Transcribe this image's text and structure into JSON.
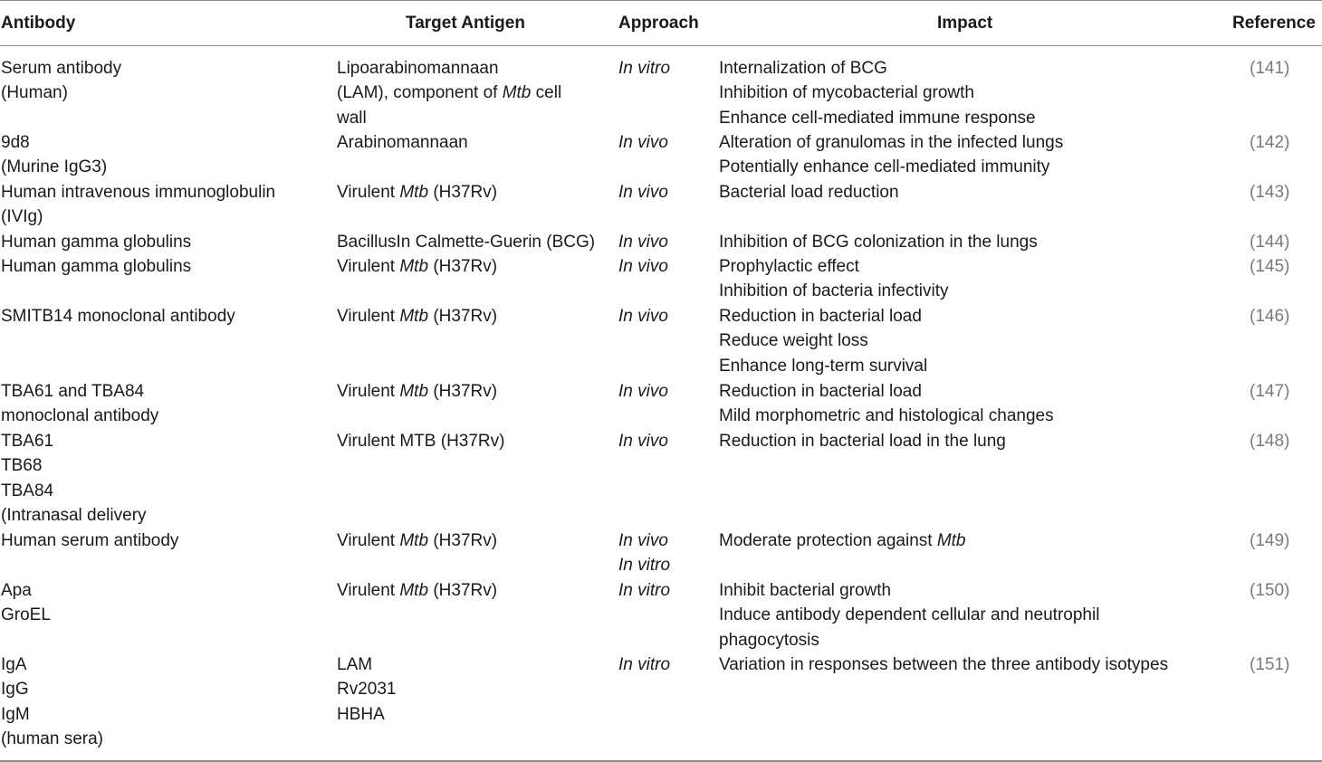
{
  "headers": {
    "antibody": "Antibody",
    "target": "Target Antigen",
    "approach": "Approach",
    "impact": "Impact",
    "reference": "Reference"
  },
  "rows": [
    {
      "antibody": [
        [
          "Serum antibody"
        ],
        [
          "(Human)"
        ]
      ],
      "target": [
        [
          "Lipoarabinomannaan"
        ],
        [
          "(LAM), component of ",
          "Mtb",
          " cell"
        ],
        [
          "wall"
        ]
      ],
      "approach": [
        "In vitro"
      ],
      "impact": [
        "Internalization of BCG",
        "Inhibition of mycobacterial growth",
        "Enhance cell-mediated immune response"
      ],
      "ref": "(141)"
    },
    {
      "antibody": [
        [
          "9d8"
        ],
        [
          "(Murine IgG3)"
        ]
      ],
      "target": [
        [
          "Arabinomannaan"
        ]
      ],
      "approach": [
        "In vivo"
      ],
      "impact": [
        "Alteration of granulomas in the infected lungs",
        "Potentially enhance cell-mediated immunity"
      ],
      "ref": "(142)"
    },
    {
      "antibody": [
        [
          "Human intravenous immunoglobulin"
        ],
        [
          "(IVIg)"
        ]
      ],
      "target": [
        [
          "Virulent ",
          "Mtb",
          " (H37Rv)"
        ]
      ],
      "approach": [
        "In vivo"
      ],
      "impact": [
        "Bacterial load reduction"
      ],
      "ref": "(143)"
    },
    {
      "antibody": [
        [
          "Human gamma globulins"
        ]
      ],
      "target": [
        [
          "BacillusIn Calmette-Guerin (BCG)"
        ]
      ],
      "approach": [
        "In vivo"
      ],
      "impact": [
        "Inhibition of BCG colonization in the lungs"
      ],
      "ref": "(144)"
    },
    {
      "antibody": [
        [
          "Human gamma globulins"
        ]
      ],
      "target": [
        [
          "Virulent ",
          "Mtb",
          " (H37Rv)"
        ]
      ],
      "approach": [
        "In vivo"
      ],
      "impact": [
        "Prophylactic effect",
        "Inhibition of bacteria infectivity"
      ],
      "ref": "(145)"
    },
    {
      "antibody": [
        [
          "SMITB14 monoclonal antibody"
        ]
      ],
      "target": [
        [
          "Virulent ",
          "Mtb",
          " (H37Rv)"
        ]
      ],
      "approach": [
        "In vivo"
      ],
      "impact": [
        "Reduction in bacterial load",
        "Reduce weight loss",
        "Enhance long-term survival"
      ],
      "ref": "(146)"
    },
    {
      "antibody": [
        [
          "TBA61 and TBA84"
        ],
        [
          "monoclonal antibody"
        ]
      ],
      "target": [
        [
          "Virulent ",
          "Mtb",
          " (H37Rv)"
        ]
      ],
      "approach": [
        "In vivo"
      ],
      "impact": [
        "Reduction in bacterial load",
        "Mild morphometric and histological changes"
      ],
      "ref": "(147)"
    },
    {
      "antibody": [
        [
          "TBA61"
        ],
        [
          "TB68"
        ],
        [
          "TBA84"
        ],
        [
          "(Intranasal delivery"
        ]
      ],
      "target": [
        [
          "Virulent MTB (H37Rv)"
        ]
      ],
      "approach": [
        "In vivo"
      ],
      "impact": [
        "Reduction in bacterial load in the lung"
      ],
      "ref": "(148)"
    },
    {
      "antibody": [
        [
          "Human serum antibody"
        ]
      ],
      "target": [
        [
          "Virulent ",
          "Mtb",
          " (H37Rv)"
        ]
      ],
      "approach": [
        "In vivo",
        "In vitro"
      ],
      "impact": [
        "Moderate protection against |Mtb"
      ],
      "ref": "(149)"
    },
    {
      "antibody": [
        [
          "Apa"
        ],
        [
          "GroEL"
        ]
      ],
      "target": [
        [
          "Virulent ",
          "Mtb",
          " (H37Rv)"
        ]
      ],
      "approach": [
        "In vitro"
      ],
      "impact": [
        "Inhibit bacterial growth",
        "Induce antibody dependent cellular and neutrophil",
        "phagocytosis"
      ],
      "ref": "(150)"
    },
    {
      "antibody": [
        [
          "IgA"
        ],
        [
          "IgG"
        ],
        [
          "IgM"
        ],
        [
          "(human sera)"
        ]
      ],
      "target": [
        [
          "LAM"
        ],
        [
          "Rv2031"
        ],
        [
          "HBHA"
        ]
      ],
      "approach": [
        "In vitro"
      ],
      "impact": [
        "Variation in responses between the three antibody isotypes"
      ],
      "ref": "(151)"
    }
  ]
}
